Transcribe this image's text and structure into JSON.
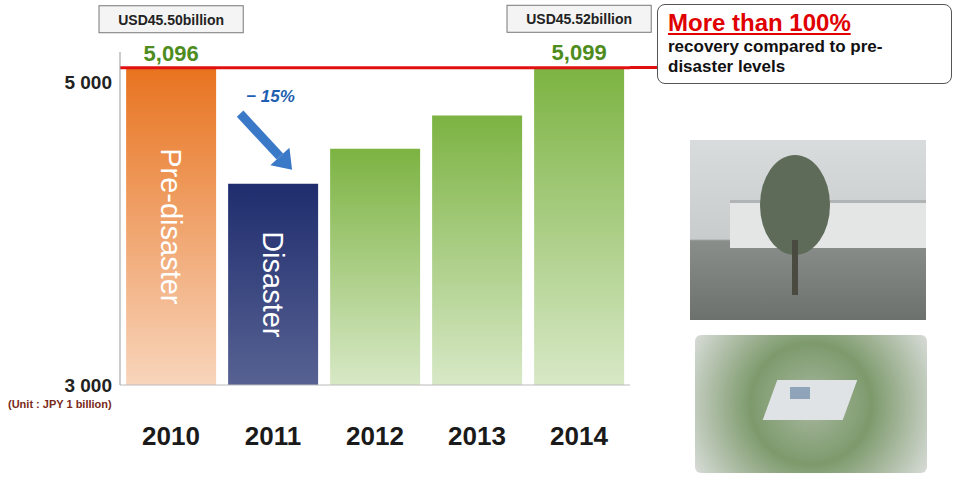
{
  "chart_data": {
    "type": "bar",
    "categories": [
      "2010",
      "2011",
      "2012",
      "2013",
      "2014"
    ],
    "values": [
      5096,
      4330,
      4560,
      4780,
      5099
    ],
    "colors": [
      "#e8731f",
      "#1f2d6e",
      "#7cb342",
      "#7cb342",
      "#7cb342"
    ],
    "ylim": [
      3000,
      5200
    ],
    "yticks": [
      {
        "value": 3000,
        "label": "3 000"
      },
      {
        "value": 5000,
        "label": "5 000"
      }
    ],
    "grid": false,
    "data_labels": true,
    "value_labels": [
      "5,096",
      null,
      null,
      null,
      "5,099"
    ],
    "y_label": "(Unit : JPY 1 billion)",
    "bar_texts": [
      "Pre-disaster",
      "Disaster",
      null,
      null,
      null
    ],
    "usd_labels": [
      "USD45.50billion",
      null,
      null,
      null,
      "USD45.52billion"
    ],
    "change_labels": [
      null,
      "− 15%",
      null,
      null,
      null
    ],
    "annotation": {
      "title": "More than 100%",
      "text": "recovery compared to pre-disaster levels"
    }
  }
}
